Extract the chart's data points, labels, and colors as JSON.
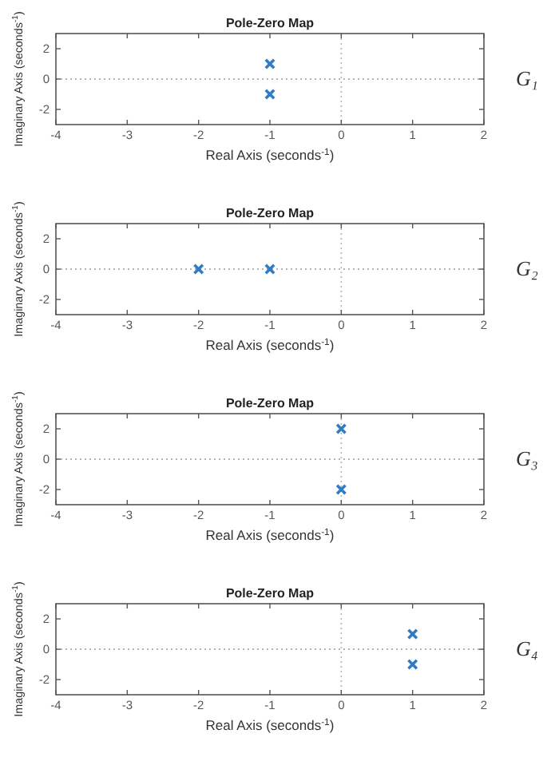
{
  "chart_data": [
    {
      "type": "scatter",
      "title": "Pole-Zero Map",
      "xlabel": "Real Axis (seconds$^{-1}$)",
      "ylabel": "Imaginary Axis (seconds$^{-1}$)",
      "annotations": [
        "G₁"
      ],
      "x": [
        -1,
        -1
      ],
      "values": [
        1,
        -1
      ],
      "color": "#2f7cc4",
      "marker": "cross",
      "xlim": [
        -4,
        2
      ],
      "ylim": [
        -3,
        3
      ],
      "xticks": [
        -4,
        -3,
        -2,
        -1,
        0,
        1,
        2
      ],
      "yticks": [
        -2,
        0,
        2
      ],
      "ref_lines": [
        {
          "axis": "x",
          "value": 0,
          "color": "#b4b4b4",
          "line_style": "dotted"
        },
        {
          "axis": "y",
          "value": 0,
          "color": "#9a9a9a",
          "line_style": "dotted"
        }
      ]
    },
    {
      "type": "scatter",
      "title": "Pole-Zero Map",
      "xlabel": "Real Axis (seconds$^{-1}$)",
      "ylabel": "Imaginary Axis (seconds$^{-1}$)",
      "annotations": [
        "G₂"
      ],
      "x": [
        -2,
        -1
      ],
      "values": [
        0,
        0
      ],
      "color": "#2f7cc4",
      "marker": "cross",
      "xlim": [
        -4,
        2
      ],
      "ylim": [
        -3,
        3
      ],
      "xticks": [
        -4,
        -3,
        -2,
        -1,
        0,
        1,
        2
      ],
      "yticks": [
        -2,
        0,
        2
      ],
      "ref_lines": [
        {
          "axis": "x",
          "value": 0,
          "color": "#b4b4b4",
          "line_style": "dotted"
        },
        {
          "axis": "y",
          "value": 0,
          "color": "#9a9a9a",
          "line_style": "dotted"
        }
      ]
    },
    {
      "type": "scatter",
      "title": "Pole-Zero Map",
      "xlabel": "Real Axis (seconds$^{-1}$)",
      "ylabel": "Imaginary Axis (seconds$^{-1}$)",
      "annotations": [
        "G₃"
      ],
      "x": [
        0,
        0
      ],
      "values": [
        2,
        -2
      ],
      "color": "#2f7cc4",
      "marker": "cross",
      "xlim": [
        -4,
        2
      ],
      "ylim": [
        -3,
        3
      ],
      "xticks": [
        -4,
        -3,
        -2,
        -1,
        0,
        1,
        2
      ],
      "yticks": [
        -2,
        0,
        2
      ],
      "ref_lines": [
        {
          "axis": "x",
          "value": 0,
          "color": "#b4b4b4",
          "line_style": "dotted"
        },
        {
          "axis": "y",
          "value": 0,
          "color": "#9a9a9a",
          "line_style": "dotted"
        }
      ]
    },
    {
      "type": "scatter",
      "title": "Pole-Zero Map",
      "xlabel": "Real Axis (seconds$^{-1}$)",
      "ylabel": "Imaginary Axis (seconds$^{-1}$)",
      "annotations": [
        "G₄"
      ],
      "x": [
        1,
        1
      ],
      "values": [
        1,
        -1
      ],
      "color": "#2f7cc4",
      "marker": "cross",
      "xlim": [
        -4,
        2
      ],
      "ylim": [
        -3,
        3
      ],
      "xticks": [
        -4,
        -3,
        -2,
        -1,
        0,
        1,
        2
      ],
      "yticks": [
        -2,
        0,
        2
      ],
      "ref_lines": [
        {
          "axis": "x",
          "value": 0,
          "color": "#b4b4b4",
          "line_style": "dotted"
        },
        {
          "axis": "y",
          "value": 0,
          "color": "#9a9a9a",
          "line_style": "dotted"
        }
      ]
    }
  ]
}
